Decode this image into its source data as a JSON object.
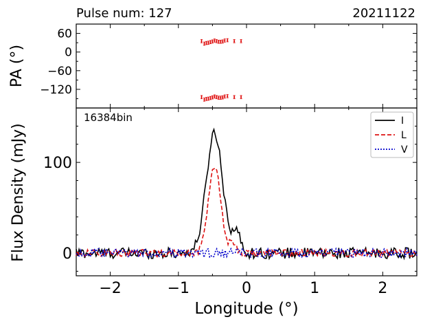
{
  "header": {
    "left": "Pulse num: 127",
    "right": "20211122"
  },
  "chart_data": [
    {
      "type": "scatter",
      "panel": "top",
      "ylabel": "PA (°)",
      "xlim": [
        -2.5,
        2.5
      ],
      "ylim": [
        -180,
        90
      ],
      "yticks": [
        60,
        0,
        -60,
        -120
      ],
      "ytick_labels": [
        "60",
        "0",
        "−60",
        "−120"
      ],
      "series": [
        {
          "name": "PA",
          "color": "#dd0000",
          "x": [
            -0.66,
            -0.62,
            -0.59,
            -0.56,
            -0.53,
            -0.5,
            -0.47,
            -0.44,
            -0.41,
            -0.38,
            -0.35,
            -0.32,
            -0.28,
            -0.18,
            -0.08
          ],
          "upper": [
            35,
            27,
            29,
            30,
            32,
            34,
            37,
            35,
            33,
            33,
            34,
            37,
            38,
            35,
            35
          ],
          "lower": [
            -145,
            -153,
            -151,
            -150,
            -148,
            -146,
            -143,
            -145,
            -147,
            -147,
            -146,
            -143,
            -142,
            -145,
            -145
          ],
          "err": 5
        }
      ]
    },
    {
      "type": "line",
      "panel": "bottom",
      "annotation": "16384bin",
      "xlabel": "Longitude (°)",
      "ylabel": "Flux Density (mJy)",
      "xlim": [
        -2.5,
        2.5
      ],
      "ylim": [
        -25,
        160
      ],
      "xticks": [
        -2,
        -1,
        0,
        1,
        2
      ],
      "xtick_labels": [
        "−2",
        "−1",
        "0",
        "1",
        "2"
      ],
      "yticks": [
        0,
        100
      ],
      "ytick_labels": [
        "0",
        "100"
      ],
      "legend": [
        "I",
        "L",
        "V"
      ],
      "legend_position": "top-right",
      "series": [
        {
          "name": "I",
          "color": "#000000",
          "style": "solid",
          "peak": 133,
          "center": -0.47,
          "width": 0.12,
          "noise": 6
        },
        {
          "name": "L",
          "color": "#dd1111",
          "style": "dashed",
          "peak": 97,
          "center": -0.47,
          "width": 0.09,
          "noise": 4
        },
        {
          "name": "V",
          "color": "#0000cc",
          "style": "dotted",
          "peak": 0,
          "center": -0.47,
          "width": 0.1,
          "noise": 5
        }
      ]
    }
  ]
}
